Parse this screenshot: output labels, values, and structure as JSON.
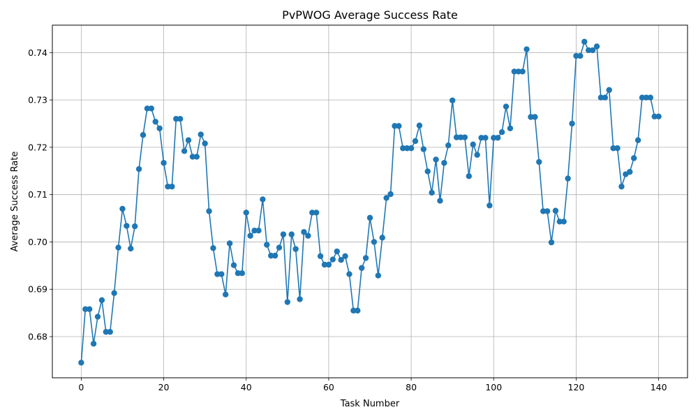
{
  "chart_data": {
    "type": "line",
    "title": "PvPWOG Average Success Rate",
    "xlabel": "Task Number",
    "ylabel": "Average Success Rate",
    "xlim": [
      -7,
      147
    ],
    "ylim": [
      0.6713,
      0.7458
    ],
    "xticks": [
      0,
      20,
      40,
      60,
      80,
      100,
      120,
      140
    ],
    "yticks": [
      0.68,
      0.69,
      0.7,
      0.71,
      0.72,
      0.73,
      0.74
    ],
    "ytick_labels": [
      "0.68",
      "0.69",
      "0.70",
      "0.71",
      "0.72",
      "0.73",
      "0.74"
    ],
    "grid": true,
    "marker": "circle",
    "series": [
      {
        "color": "#1f77b4",
        "x": [
          0,
          1,
          2,
          3,
          4,
          5,
          6,
          7,
          8,
          9,
          10,
          11,
          12,
          13,
          14,
          15,
          16,
          17,
          18,
          19,
          20,
          21,
          22,
          23,
          24,
          25,
          26,
          27,
          28,
          29,
          30,
          31,
          32,
          33,
          34,
          35,
          36,
          37,
          38,
          39,
          40,
          41,
          42,
          43,
          44,
          45,
          46,
          47,
          48,
          49,
          50,
          51,
          52,
          53,
          54,
          55,
          56,
          57,
          58,
          59,
          60,
          61,
          62,
          63,
          64,
          65,
          66,
          67,
          68,
          69,
          70,
          71,
          72,
          73,
          74,
          75,
          76,
          77,
          78,
          79,
          80,
          81,
          82,
          83,
          84,
          85,
          86,
          87,
          88,
          89,
          90,
          91,
          92,
          93,
          94,
          95,
          96,
          97,
          98,
          99,
          100,
          101,
          102,
          103,
          104,
          105,
          106,
          107,
          108,
          109,
          110,
          111,
          112,
          113,
          114,
          115,
          116,
          117,
          118,
          119,
          120,
          121,
          122,
          123,
          124,
          125,
          126,
          127,
          128,
          129,
          130,
          131,
          132,
          133,
          134,
          135,
          136,
          137,
          138,
          139,
          140
        ],
        "values": [
          0.6745,
          0.6858,
          0.6858,
          0.6785,
          0.6842,
          0.6877,
          0.681,
          0.681,
          0.6892,
          0.6988,
          0.707,
          0.7034,
          0.6986,
          0.7033,
          0.7154,
          0.7226,
          0.7282,
          0.7282,
          0.7254,
          0.724,
          0.7167,
          0.7117,
          0.7117,
          0.726,
          0.726,
          0.7192,
          0.7215,
          0.718,
          0.718,
          0.7227,
          0.7208,
          0.7065,
          0.6987,
          0.6932,
          0.6932,
          0.6889,
          0.6997,
          0.6951,
          0.6934,
          0.6934,
          0.7062,
          0.7013,
          0.7024,
          0.7024,
          0.709,
          0.6994,
          0.6971,
          0.6971,
          0.6988,
          0.7016,
          0.6873,
          0.7016,
          0.6985,
          0.6879,
          0.7021,
          0.7013,
          0.7062,
          0.7062,
          0.697,
          0.6952,
          0.6952,
          0.6963,
          0.698,
          0.6962,
          0.697,
          0.6932,
          0.6855,
          0.6855,
          0.6945,
          0.6966,
          0.7051,
          0.7,
          0.6929,
          0.7009,
          0.7093,
          0.7101,
          0.7245,
          0.7245,
          0.7198,
          0.7198,
          0.7198,
          0.7213,
          0.7246,
          0.7196,
          0.7149,
          0.7104,
          0.7174,
          0.7087,
          0.7167,
          0.7204,
          0.7299,
          0.7221,
          0.7221,
          0.7221,
          0.7139,
          0.7206,
          0.7184,
          0.722,
          0.722,
          0.7077,
          0.722,
          0.722,
          0.7232,
          0.7286,
          0.724,
          0.736,
          0.736,
          0.736,
          0.7407,
          0.7264,
          0.7264,
          0.7169,
          0.7065,
          0.7065,
          0.6999,
          0.7066,
          0.7043,
          0.7043,
          0.7134,
          0.725,
          0.7393,
          0.7393,
          0.7423,
          0.7405,
          0.7405,
          0.7413,
          0.7305,
          0.7305,
          0.7321,
          0.7198,
          0.7198,
          0.7117,
          0.7143,
          0.7148,
          0.7177,
          0.7215,
          0.7305,
          0.7305,
          0.7305,
          0.7265,
          0.7265
        ]
      }
    ]
  }
}
